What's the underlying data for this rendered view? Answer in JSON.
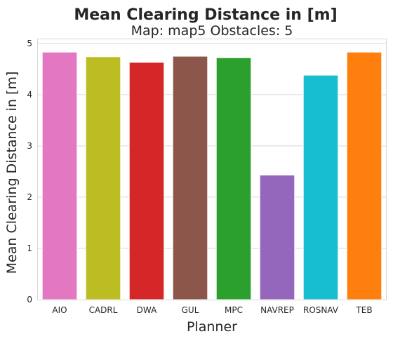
{
  "chart_data": {
    "type": "bar",
    "title": "Mean Clearing Distance in [m]",
    "subtitle": "Map: map5 Obstacles: 5",
    "xlabel": "Planner",
    "ylabel": "Mean Clearing Distance in [m]",
    "categories": [
      "AIO",
      "CADRL",
      "DWA",
      "GUL",
      "MPC",
      "NAVREP",
      "ROSNAV",
      "TEB"
    ],
    "values": [
      4.83,
      4.74,
      4.63,
      4.75,
      4.72,
      2.43,
      4.38,
      4.83
    ],
    "colors": [
      "#e377c2",
      "#bcbd22",
      "#d62728",
      "#8c564b",
      "#2ca02c",
      "#9467bd",
      "#17becf",
      "#ff7f0e"
    ],
    "ylim": [
      0,
      5.08
    ],
    "yticks": [
      0,
      1,
      2,
      3,
      4,
      5
    ],
    "grid": true
  }
}
